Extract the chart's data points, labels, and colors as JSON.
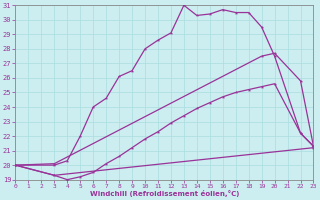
{
  "background_color": "#cceef0",
  "grid_color": "#aadddf",
  "line_color": "#993399",
  "xlabel": "Windchill (Refroidissement éolien,°C)",
  "xlim": [
    0,
    23
  ],
  "ylim": [
    19,
    31
  ],
  "xticks": [
    0,
    1,
    2,
    3,
    4,
    5,
    6,
    7,
    8,
    9,
    10,
    11,
    12,
    13,
    14,
    15,
    16,
    17,
    18,
    19,
    20,
    21,
    22,
    23
  ],
  "yticks": [
    19,
    20,
    21,
    22,
    23,
    24,
    25,
    26,
    27,
    28,
    29,
    30,
    31
  ],
  "line1_x": [
    0,
    3,
    4,
    5,
    6,
    7,
    8,
    9,
    10,
    11,
    12,
    13,
    14,
    15,
    16,
    17,
    18,
    19,
    20,
    22,
    23
  ],
  "line1_y": [
    20.0,
    19.3,
    19.0,
    19.2,
    19.5,
    20.1,
    20.6,
    21.2,
    21.8,
    22.3,
    22.9,
    23.4,
    23.9,
    24.3,
    24.7,
    25.0,
    25.2,
    25.4,
    25.6,
    22.2,
    21.3
  ],
  "line2_x": [
    0,
    3,
    4,
    5,
    6,
    7,
    8,
    9,
    10,
    11,
    12,
    13,
    14,
    15,
    16,
    17,
    18,
    19,
    20,
    22,
    23
  ],
  "line2_y": [
    20.0,
    20.0,
    20.3,
    22.0,
    24.0,
    24.6,
    26.1,
    26.5,
    28.0,
    28.6,
    29.1,
    31.0,
    30.3,
    30.4,
    30.7,
    30.5,
    30.5,
    29.5,
    27.5,
    22.2,
    21.3
  ],
  "line3_x": [
    0,
    3,
    19,
    20,
    22,
    23
  ],
  "line3_y": [
    20.0,
    20.1,
    27.5,
    27.7,
    25.8,
    21.3
  ],
  "line4_x": [
    0,
    3,
    23
  ],
  "line4_y": [
    20.0,
    19.3,
    21.2
  ]
}
